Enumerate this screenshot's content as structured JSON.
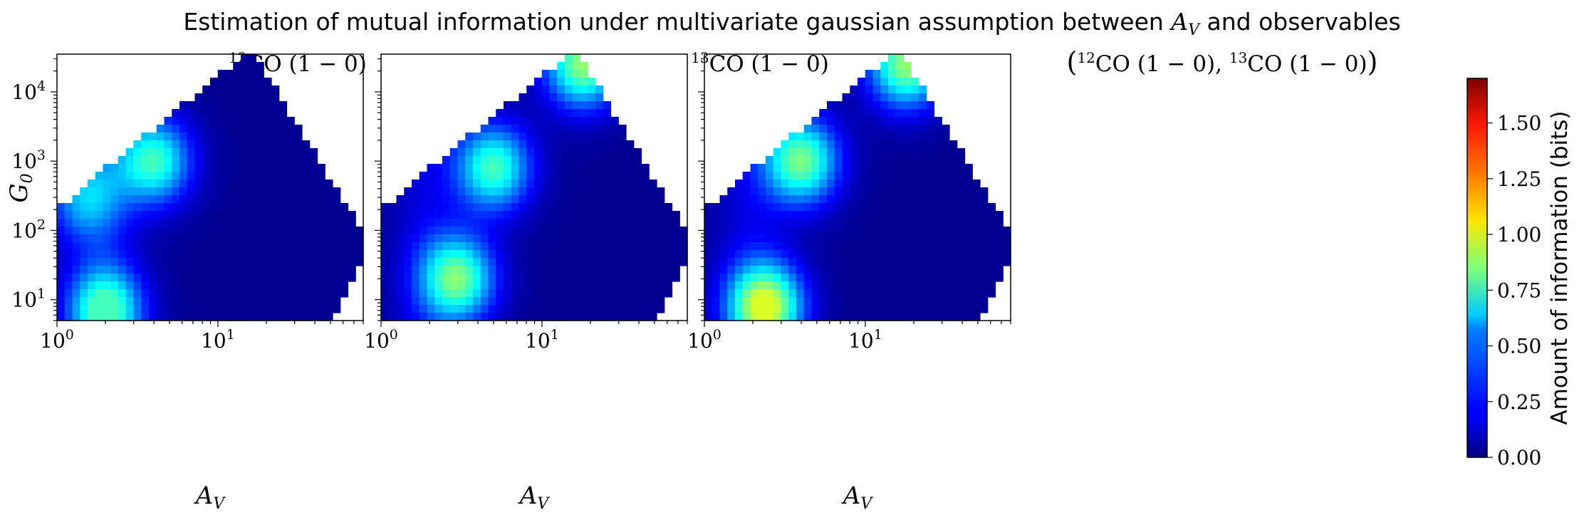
{
  "title": "Estimation of mutual information under multivariate gaussian assumption between A_V and observables",
  "chart_data": {
    "type": "heatmap",
    "colormap": "jet",
    "x_axis": {
      "label": "A_V",
      "scale": "log",
      "range": [
        1,
        80
      ],
      "ticks": [
        "10^0",
        "10^1"
      ]
    },
    "y_axis": {
      "label": "G_0",
      "scale": "log",
      "range": [
        5,
        35000
      ],
      "ticks": [
        "10^1",
        "10^2",
        "10^3",
        "10^4"
      ]
    },
    "colorbar": {
      "label": "Amount of information (bits)",
      "range": [
        0,
        1.7
      ],
      "ticks": [
        "0.00",
        "0.25",
        "0.50",
        "0.75",
        "1.00",
        "1.25",
        "1.50"
      ]
    },
    "panels": [
      {
        "title": "12CO (1 − 0)",
        "peak_value": 0.75,
        "hotspots": [
          {
            "A_V": 2.0,
            "G_0": 7,
            "value": 0.72
          },
          {
            "A_V": 4.0,
            "G_0": 1000,
            "value": 0.7
          },
          {
            "A_V": 1.5,
            "G_0": 300,
            "value": 0.45
          }
        ]
      },
      {
        "title": "13CO (1 − 0)",
        "peak_value": 0.9,
        "hotspots": [
          {
            "A_V": 3.0,
            "G_0": 20,
            "value": 0.78
          },
          {
            "A_V": 5.0,
            "G_0": 800,
            "value": 0.72
          },
          {
            "A_V": 18,
            "G_0": 25000,
            "value": 0.85
          }
        ]
      },
      {
        "title": "(12CO (1 − 0), 13CO (1 − 0))",
        "peak_value": 1.0,
        "hotspots": [
          {
            "A_V": 2.4,
            "G_0": 8,
            "value": 0.95
          },
          {
            "A_V": 4.0,
            "G_0": 1000,
            "value": 0.8
          },
          {
            "A_V": 18,
            "G_0": 25000,
            "value": 0.85
          }
        ]
      }
    ]
  }
}
